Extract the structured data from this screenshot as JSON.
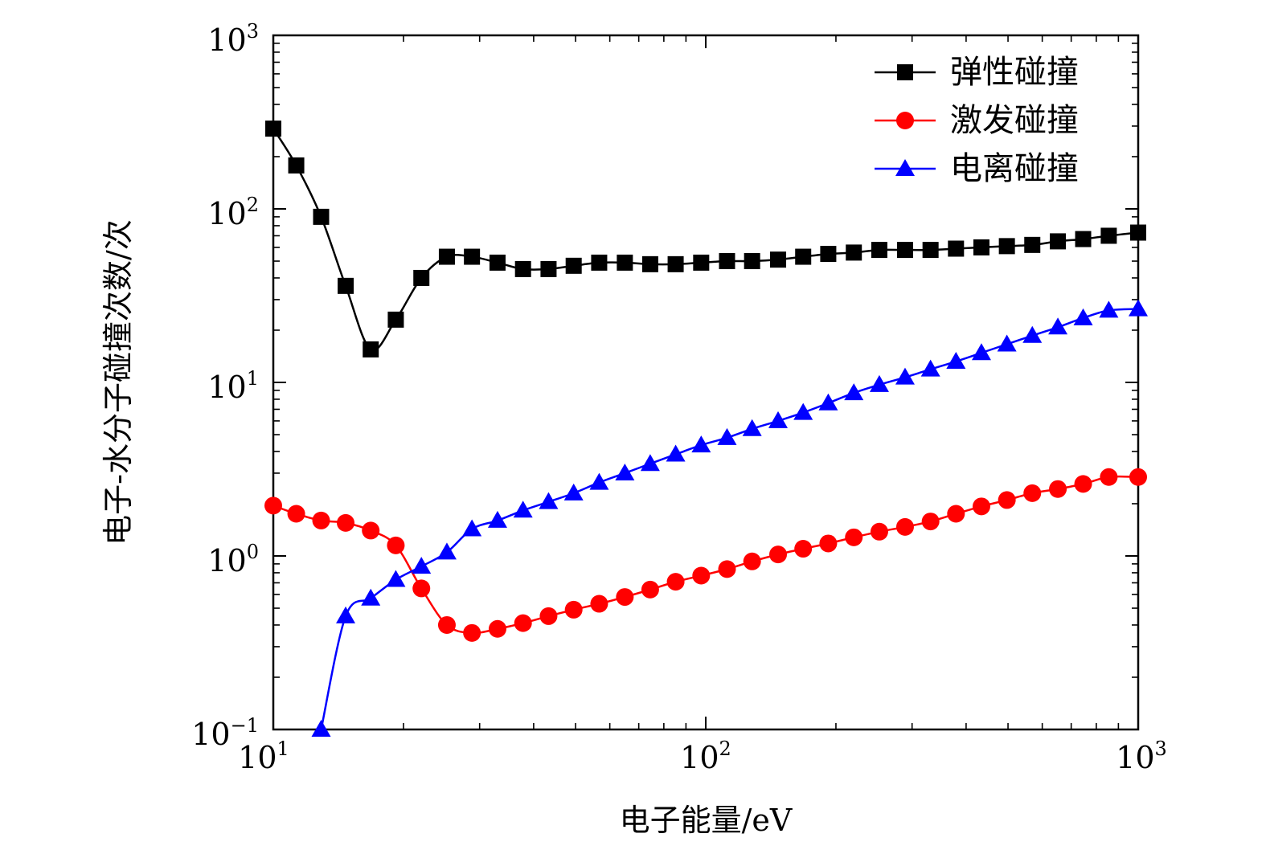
{
  "chart_data": {
    "type": "line",
    "title": "",
    "xlabel": "电子能量/eV",
    "ylabel": "电子-水分子碰撞次数/次",
    "xscale": "log",
    "yscale": "log",
    "xlim": [
      10,
      1000
    ],
    "ylim": [
      0.1,
      1000
    ],
    "x_ticks": [
      {
        "value": 10,
        "base": "10",
        "exp": "1"
      },
      {
        "value": 100,
        "base": "10",
        "exp": "2"
      },
      {
        "value": 1000,
        "base": "10",
        "exp": "3"
      }
    ],
    "y_ticks": [
      {
        "value": 0.1,
        "base": "10",
        "exp": "−1"
      },
      {
        "value": 1,
        "base": "10",
        "exp": "0"
      },
      {
        "value": 10,
        "base": "10",
        "exp": "1"
      },
      {
        "value": 100,
        "base": "10",
        "exp": "2"
      },
      {
        "value": 1000,
        "base": "10",
        "exp": "3"
      }
    ],
    "legend_position": "top-right",
    "series": [
      {
        "name": "弹性碰撞",
        "color": "#000000",
        "marker": "square",
        "x": [
          10,
          11.3,
          12.9,
          14.7,
          16.8,
          19.2,
          22,
          25.2,
          28.8,
          33,
          37.8,
          43.3,
          49.5,
          56.7,
          65,
          74.4,
          85.2,
          97.6,
          112,
          128,
          147,
          168,
          192,
          220,
          252,
          289,
          331,
          379,
          434,
          497,
          569,
          652,
          746,
          855,
          1000
        ],
        "values": [
          290,
          178,
          90,
          36,
          15.5,
          23,
          40,
          53,
          53,
          49,
          45,
          45,
          47,
          49,
          49,
          48,
          48,
          49,
          50,
          50,
          51,
          53,
          55,
          56,
          58,
          58,
          58,
          59,
          60,
          61,
          62,
          65,
          67,
          70,
          73
        ]
      },
      {
        "name": "激发碰撞",
        "color": "#ff0000",
        "marker": "circle",
        "x": [
          10,
          11.3,
          12.9,
          14.7,
          16.8,
          19.2,
          22,
          25.2,
          28.8,
          33,
          37.8,
          43.3,
          49.5,
          56.7,
          65,
          74.4,
          85.2,
          97.6,
          112,
          128,
          147,
          168,
          192,
          220,
          252,
          289,
          331,
          379,
          434,
          497,
          569,
          652,
          746,
          855,
          1000
        ],
        "values": [
          1.95,
          1.75,
          1.6,
          1.55,
          1.4,
          1.15,
          0.65,
          0.4,
          0.36,
          0.38,
          0.41,
          0.45,
          0.49,
          0.53,
          0.58,
          0.64,
          0.71,
          0.77,
          0.84,
          0.93,
          1.02,
          1.1,
          1.18,
          1.28,
          1.38,
          1.47,
          1.58,
          1.75,
          1.93,
          2.1,
          2.3,
          2.43,
          2.6,
          2.85,
          2.85
        ]
      },
      {
        "name": "电离碰撞",
        "color": "#0000ff",
        "marker": "triangle",
        "x": [
          12.9,
          14.7,
          16.8,
          19.2,
          22,
          25.2,
          28.8,
          33,
          37.8,
          43.3,
          49.5,
          56.7,
          65,
          74.4,
          85.2,
          97.6,
          112,
          128,
          147,
          168,
          192,
          220,
          252,
          289,
          331,
          379,
          434,
          497,
          569,
          652,
          746,
          855,
          1000
        ],
        "values": [
          0.1,
          0.45,
          0.57,
          0.73,
          0.87,
          1.05,
          1.43,
          1.6,
          1.83,
          2.05,
          2.3,
          2.65,
          3.0,
          3.4,
          3.85,
          4.35,
          4.8,
          5.4,
          6.0,
          6.7,
          7.6,
          8.7,
          9.7,
          10.7,
          11.9,
          13.2,
          14.8,
          16.6,
          18.6,
          20.8,
          23.5,
          26,
          26.5
        ]
      }
    ]
  }
}
